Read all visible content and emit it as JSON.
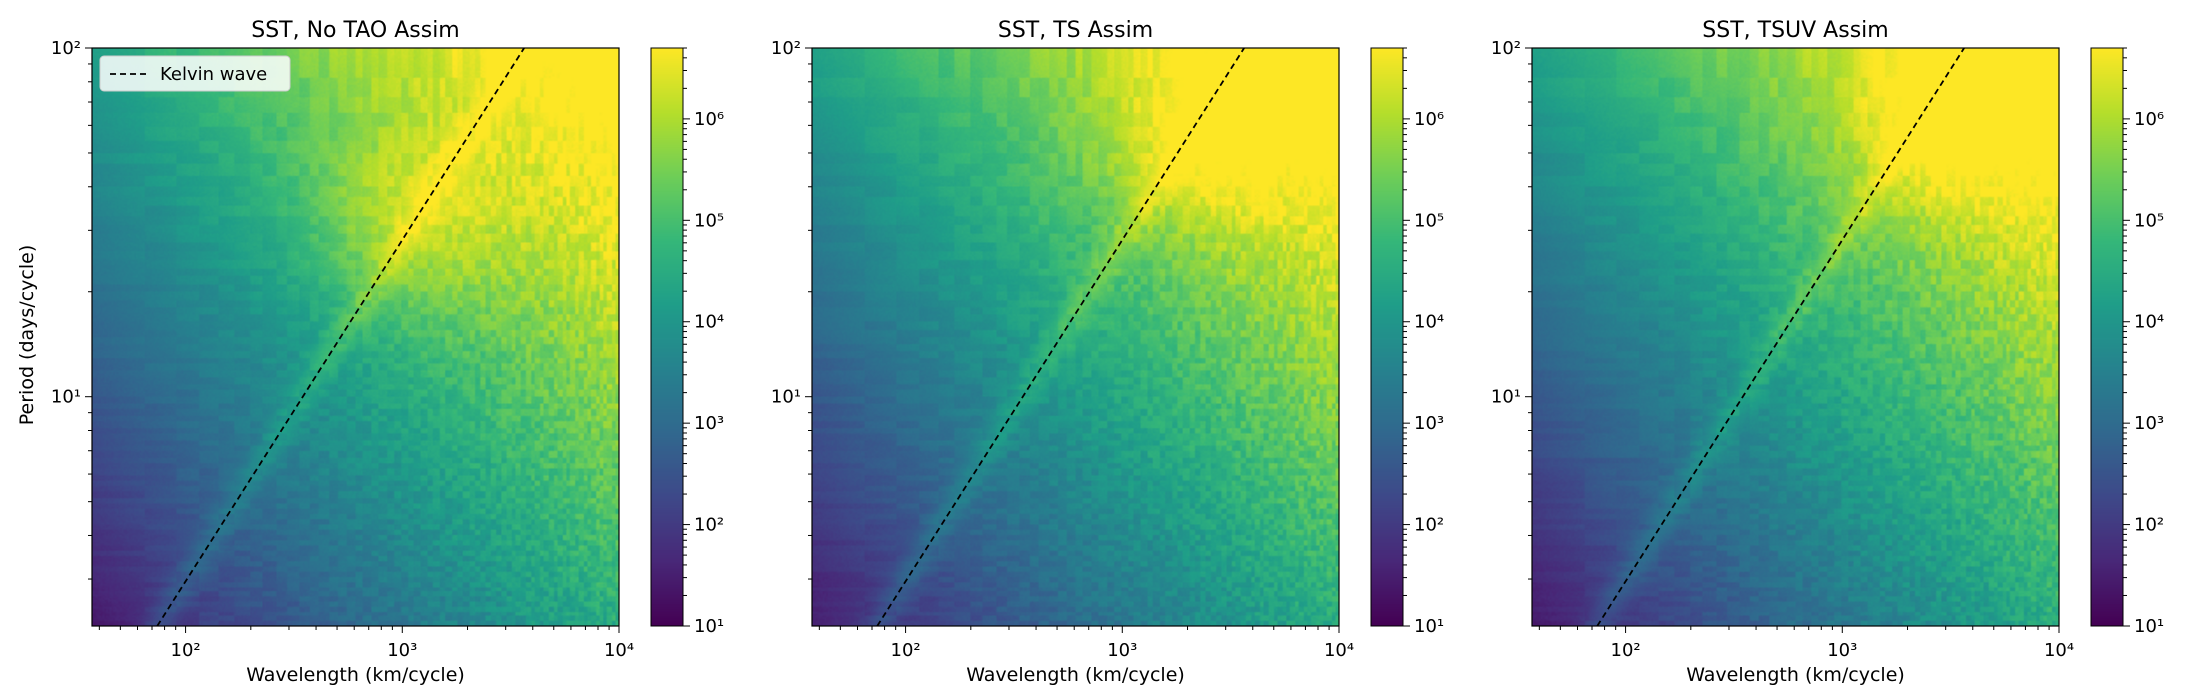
{
  "figure": {
    "ylabel": "Period (days/cycle)",
    "xlabel": "Wavelength (km/cycle)"
  },
  "colormap": {
    "name": "viridis",
    "stops": [
      "#440154",
      "#482878",
      "#3e4989",
      "#31688e",
      "#26828e",
      "#1f9e89",
      "#35b779",
      "#6ece58",
      "#b5de2b",
      "#fde725"
    ]
  },
  "chart_data": [
    {
      "type": "heatmap",
      "title": "SST, No TAO Assim",
      "xlabel": "Wavelength (km/cycle)",
      "ylabel": "Period (days/cycle)",
      "x_scale": "log",
      "y_scale": "log",
      "xlim": [
        37,
        10000
      ],
      "ylim": [
        2.2,
        100
      ],
      "x_ticks": [
        {
          "value": 100,
          "label": "10²"
        },
        {
          "value": 1000,
          "label": "10³"
        },
        {
          "value": 10000,
          "label": "10⁴"
        }
      ],
      "y_ticks": [
        {
          "value": 10,
          "label": "10¹"
        },
        {
          "value": 100,
          "label": "10²"
        }
      ],
      "colorbar": {
        "scale": "log",
        "range": [
          10,
          5000000
        ],
        "ticks": [
          {
            "value": 10,
            "label": "10¹"
          },
          {
            "value": 100,
            "label": "10²"
          },
          {
            "value": 1000,
            "label": "10³"
          },
          {
            "value": 10000,
            "label": "10⁴"
          },
          {
            "value": 100000,
            "label": "10⁵"
          },
          {
            "value": 1000000,
            "label": "10⁶"
          }
        ]
      },
      "legend": {
        "position": "top-left",
        "entries": [
          {
            "label": "Kelvin wave",
            "style": "dashed",
            "color": "#000000"
          }
        ]
      },
      "kelvin_wave": {
        "x": [
          74,
          3650
        ],
        "y": [
          2.2,
          100
        ]
      },
      "power_peak": {
        "wavelength": 1050,
        "period": 32,
        "log10_power": 6.8
      }
    },
    {
      "type": "heatmap",
      "title": "SST, TS Assim",
      "xlabel": "Wavelength (km/cycle)",
      "x_scale": "log",
      "y_scale": "log",
      "xlim": [
        37,
        10000
      ],
      "ylim": [
        2.2,
        100
      ],
      "x_ticks": [
        {
          "value": 100,
          "label": "10²"
        },
        {
          "value": 1000,
          "label": "10³"
        },
        {
          "value": 10000,
          "label": "10⁴"
        }
      ],
      "y_ticks": [
        {
          "value": 10,
          "label": "10¹"
        },
        {
          "value": 100,
          "label": "10²"
        }
      ],
      "colorbar": {
        "scale": "log",
        "range": [
          10,
          5000000
        ],
        "ticks": [
          {
            "value": 10,
            "label": "10¹"
          },
          {
            "value": 100,
            "label": "10²"
          },
          {
            "value": 1000,
            "label": "10³"
          },
          {
            "value": 10000,
            "label": "10⁴"
          },
          {
            "value": 100000,
            "label": "10⁵"
          },
          {
            "value": 1000000,
            "label": "10⁶"
          }
        ]
      },
      "kelvin_wave": {
        "x": [
          74,
          3650
        ],
        "y": [
          2.2,
          100
        ]
      },
      "power_peak": {
        "wavelength": 2500,
        "period": 55,
        "log10_power": 6.7
      }
    },
    {
      "type": "heatmap",
      "title": "SST, TSUV Assim",
      "xlabel": "Wavelength (km/cycle)",
      "x_scale": "log",
      "y_scale": "log",
      "xlim": [
        37,
        10000
      ],
      "ylim": [
        2.2,
        100
      ],
      "x_ticks": [
        {
          "value": 100,
          "label": "10²"
        },
        {
          "value": 1000,
          "label": "10³"
        },
        {
          "value": 10000,
          "label": "10⁴"
        }
      ],
      "y_ticks": [
        {
          "value": 10,
          "label": "10¹"
        },
        {
          "value": 100,
          "label": "10²"
        }
      ],
      "colorbar": {
        "scale": "log",
        "range": [
          10,
          5000000
        ],
        "ticks": [
          {
            "value": 10,
            "label": "10¹"
          },
          {
            "value": 100,
            "label": "10²"
          },
          {
            "value": 1000,
            "label": "10³"
          },
          {
            "value": 10000,
            "label": "10⁴"
          },
          {
            "value": 100000,
            "label": "10⁵"
          },
          {
            "value": 1000000,
            "label": "10⁶"
          }
        ]
      },
      "kelvin_wave": {
        "x": [
          74,
          3650
        ],
        "y": [
          2.2,
          100
        ]
      },
      "power_peak": {
        "wavelength": 3000,
        "period": 60,
        "log10_power": 6.7
      }
    }
  ]
}
